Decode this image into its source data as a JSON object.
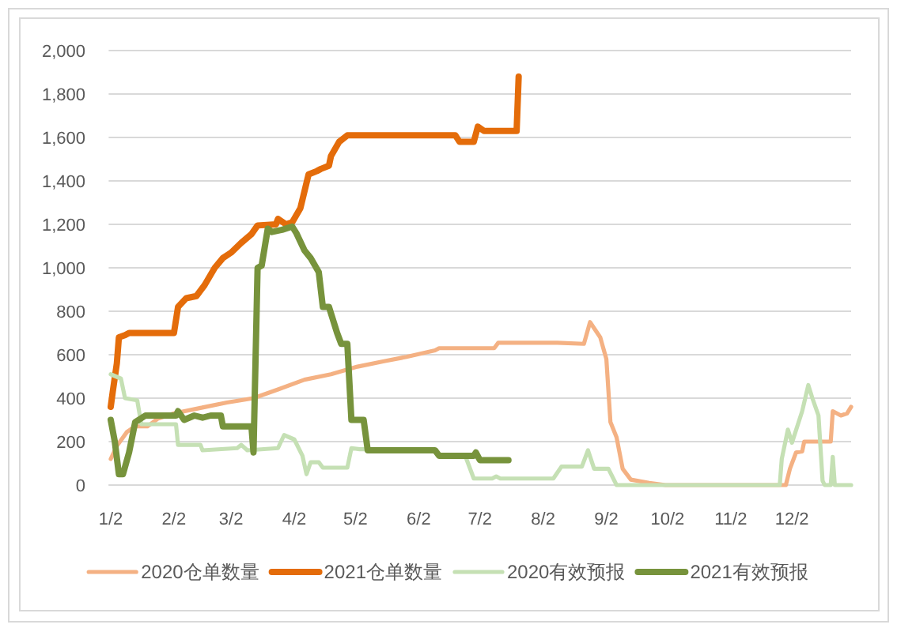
{
  "chart_data": {
    "type": "line",
    "xlim": [
      "--01-01",
      "--12-31"
    ],
    "xticks": [
      {
        "value": "--01-02",
        "label": "1/2"
      },
      {
        "value": "--02-02",
        "label": "2/2"
      },
      {
        "value": "--03-02",
        "label": "3/2"
      },
      {
        "value": "--04-02",
        "label": "4/2"
      },
      {
        "value": "--05-02",
        "label": "5/2"
      },
      {
        "value": "--06-02",
        "label": "6/2"
      },
      {
        "value": "--07-02",
        "label": "7/2"
      },
      {
        "value": "--08-02",
        "label": "8/2"
      },
      {
        "value": "--09-02",
        "label": "9/2"
      },
      {
        "value": "--10-02",
        "label": "10/2"
      },
      {
        "value": "--11-02",
        "label": "11/2"
      },
      {
        "value": "--12-02",
        "label": "12/2"
      }
    ],
    "ylim": [
      0,
      2000
    ],
    "yticks": [
      0,
      200,
      400,
      600,
      800,
      {
        "value": 1000,
        "label": "1,000"
      },
      {
        "value": 1200,
        "label": "1,200"
      },
      {
        "value": 1400,
        "label": "1,400"
      },
      {
        "value": 1600,
        "label": "1,600"
      },
      {
        "value": 1800,
        "label": "1,800"
      },
      {
        "value": 2000,
        "label": "2,000"
      }
    ],
    "grid": "y",
    "legend": "bottom",
    "series": [
      {
        "name": "2020仓单数量",
        "color": "#f4b183",
        "x": [
          "--01-02",
          "--01-05",
          "--01-10",
          "--01-14",
          "--01-20",
          "--01-25",
          "--02-02",
          "--02-15",
          "--02-28",
          "--03-13",
          "--03-25",
          "--04-07",
          "--04-20",
          "--05-03",
          "--05-16",
          "--05-27",
          "--06-10",
          "--06-12",
          "--07-09",
          "--07-11",
          "--08-09",
          "--08-22",
          "--08-25",
          "--08-30",
          "--09-02",
          "--09-04",
          "--09-07",
          "--09-10",
          "--09-14",
          "--09-23",
          "--10-01",
          "--11-29",
          "--12-01",
          "--12-04",
          "--12-07",
          "--12-08",
          "--12-21",
          "--12-22",
          "--12-26",
          "--12-29",
          "--12-31"
        ],
        "values": [
          120,
          180,
          245,
          270,
          270,
          305,
          330,
          355,
          380,
          400,
          440,
          485,
          510,
          545,
          570,
          590,
          620,
          630,
          630,
          655,
          655,
          650,
          750,
          680,
          580,
          290,
          220,
          75,
          25,
          10,
          0,
          0,
          75,
          150,
          155,
          200,
          200,
          340,
          320,
          330,
          360
        ]
      },
      {
        "name": "2021仓单数量",
        "color": "#e46c0a",
        "x": [
          "--01-02",
          "--01-03",
          "--01-05",
          "--01-06",
          "--01-09",
          "--01-11",
          "--02-02",
          "--02-04",
          "--02-08",
          "--02-13",
          "--02-17",
          "--02-22",
          "--02-26",
          "--03-02",
          "--03-07",
          "--03-12",
          "--03-15",
          "--03-24",
          "--03-25",
          "--03-29",
          "--04-01",
          "--04-05",
          "--04-09",
          "--04-13",
          "--04-15",
          "--04-19",
          "--04-20",
          "--04-24",
          "--04-28",
          "--06-20",
          "--06-22",
          "--06-29",
          "--07-01",
          "--07-04",
          "--07-20",
          "--07-21"
        ],
        "values": [
          360,
          430,
          560,
          680,
          690,
          700,
          700,
          820,
          860,
          870,
          920,
          1000,
          1045,
          1070,
          1115,
          1155,
          1195,
          1200,
          1225,
          1200,
          1210,
          1275,
          1430,
          1445,
          1455,
          1470,
          1515,
          1580,
          1610,
          1610,
          1580,
          1580,
          1650,
          1630,
          1630,
          1880
        ]
      },
      {
        "name": "2020有效预报",
        "color": "#c5e0b4",
        "x": [
          "--01-02",
          "--01-07",
          "--01-09",
          "--01-15",
          "--01-17",
          "--02-03",
          "--02-04",
          "--02-15",
          "--02-16",
          "--03-05",
          "--03-07",
          "--03-10",
          "--03-25",
          "--03-28",
          "--04-02",
          "--04-06",
          "--04-08",
          "--04-10",
          "--04-14",
          "--04-16",
          "--04-28",
          "--04-30",
          "--05-04",
          "--05-07",
          "--05-20",
          "--06-25",
          "--06-29",
          "--07-08",
          "--07-10",
          "--07-12",
          "--08-07",
          "--08-11",
          "--08-21",
          "--08-24",
          "--08-27",
          "--09-03",
          "--09-07",
          "--11-26",
          "--11-27",
          "--11-30",
          "--12-02",
          "--12-07",
          "--12-10",
          "--12-12",
          "--12-15",
          "--12-17",
          "--12-18",
          "--12-21",
          "--12-22",
          "--12-23",
          "--12-31"
        ],
        "values": [
          510,
          490,
          400,
          390,
          280,
          280,
          185,
          185,
          160,
          170,
          185,
          160,
          170,
          230,
          210,
          135,
          50,
          105,
          105,
          80,
          80,
          170,
          165,
          165,
          null,
          130,
          30,
          30,
          40,
          30,
          30,
          85,
          85,
          160,
          75,
          75,
          0,
          0,
          120,
          255,
          195,
          340,
          460,
          400,
          320,
          20,
          0,
          0,
          130,
          0,
          0
        ]
      },
      {
        "name": "2021有效预报",
        "color": "#77933c",
        "x": [
          "--01-02",
          "--01-04",
          "--01-06",
          "--01-08",
          "--01-11",
          "--01-14",
          "--01-19",
          "--02-03",
          "--02-04",
          "--02-07",
          "--02-12",
          "--02-16",
          "--02-20",
          "--02-25",
          "--02-26",
          "--03-12",
          "--03-13",
          "--03-15",
          "--03-17",
          "--03-20",
          "--03-22",
          "--03-27",
          "--04-01",
          "--04-03",
          "--04-07",
          "--04-10",
          "--04-14",
          "--04-16",
          "--04-19",
          "--04-23",
          "--04-25",
          "--04-28",
          "--04-30",
          "--05-06",
          "--05-08",
          "--06-10",
          "--06-12",
          "--06-29",
          "--06-30",
          "--07-02",
          "--07-16"
        ],
        "values": [
          300,
          200,
          50,
          50,
          150,
          290,
          320,
          320,
          340,
          300,
          320,
          310,
          320,
          320,
          270,
          270,
          150,
          1000,
          1010,
          1180,
          1165,
          1175,
          1190,
          1160,
          1080,
          1045,
          980,
          820,
          820,
          700,
          650,
          650,
          300,
          300,
          160,
          160,
          135,
          135,
          150,
          115,
          115
        ]
      }
    ]
  }
}
